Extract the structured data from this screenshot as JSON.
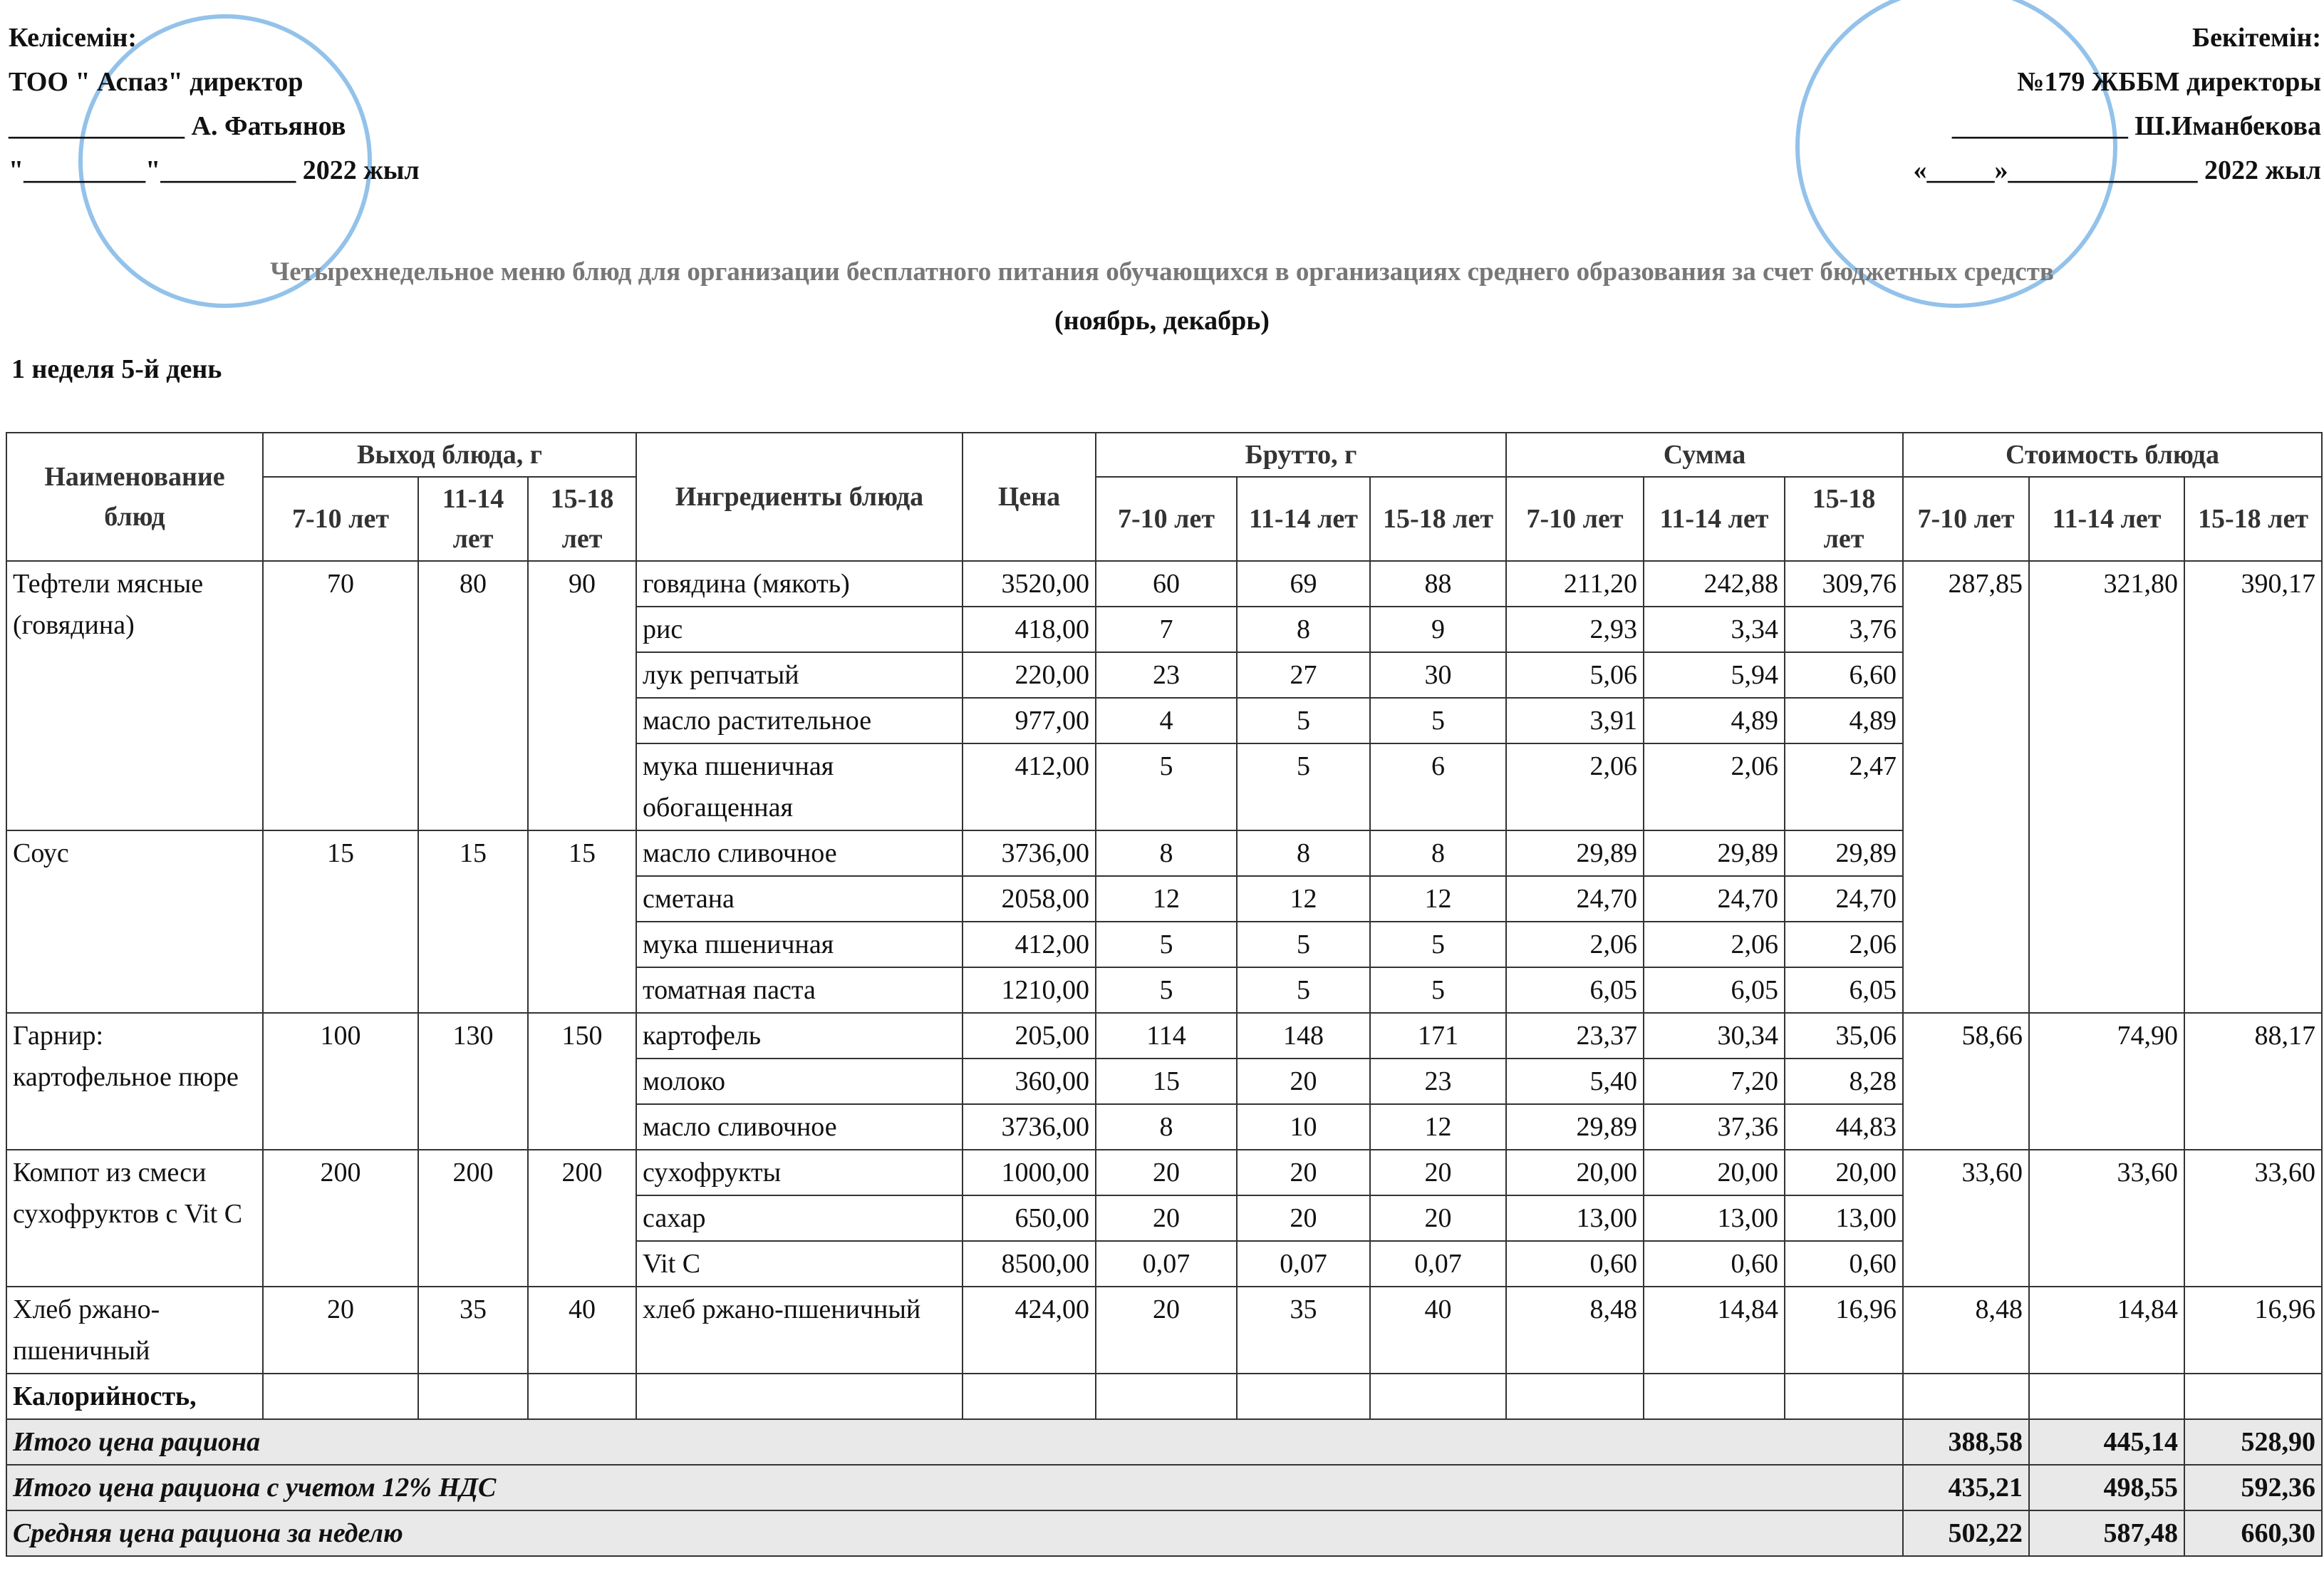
{
  "header": {
    "left": [
      "Келісемін:",
      "ТОО  \" Аспаз\" директор",
      "_____________ А. Фатьянов",
      "\"_________\"__________ 2022 жыл"
    ],
    "right": [
      "Бекітемін:",
      "№179 ЖББМ директоры",
      "_____________ Ш.Иманбекова",
      "«_____»______________ 2022 жыл"
    ],
    "title": "Четырехнедельное меню блюд для организации бесплатного питания обучающихся в организациях среднего образования за счет бюджетных средств",
    "subtitle": "(ноябрь, декабрь)",
    "day": "1 неделя 5-й день"
  },
  "table": {
    "headers": {
      "name": "Наименование блюд",
      "output": "Выход блюда, г",
      "ingredients": "Ингредиенты блюда",
      "price": "Цена",
      "brutto": "Брутто, г",
      "sum": "Сумма",
      "cost": "Стоимость блюда",
      "ages": [
        "7-10 лет",
        "11-14 лет",
        "15-18 лет"
      ]
    },
    "dishes": [
      {
        "name": "Тефтели мясные (говядина)",
        "output": [
          "70",
          "80",
          "90"
        ],
        "cost": [
          "287,85",
          "321,80",
          "390,17"
        ],
        "ingredients": [
          {
            "name": "говядина (мякоть)",
            "price": "3520,00",
            "brutto": [
              "60",
              "69",
              "88"
            ],
            "sum": [
              "211,20",
              "242,88",
              "309,76"
            ]
          },
          {
            "name": "рис",
            "price": "418,00",
            "brutto": [
              "7",
              "8",
              "9"
            ],
            "sum": [
              "2,93",
              "3,34",
              "3,76"
            ]
          },
          {
            "name": "лук репчатый",
            "price": "220,00",
            "brutto": [
              "23",
              "27",
              "30"
            ],
            "sum": [
              "5,06",
              "5,94",
              "6,60"
            ]
          },
          {
            "name": "масло растительное",
            "price": "977,00",
            "brutto": [
              "4",
              "5",
              "5"
            ],
            "sum": [
              "3,91",
              "4,89",
              "4,89"
            ]
          },
          {
            "name": "мука пшеничная обогащенная",
            "price": "412,00",
            "brutto": [
              "5",
              "5",
              "6"
            ],
            "sum": [
              "2,06",
              "2,06",
              "2,47"
            ]
          }
        ]
      },
      {
        "name": "Соус",
        "output": [
          "15",
          "15",
          "15"
        ],
        "ingredients": [
          {
            "name": "масло сливочное",
            "price": "3736,00",
            "brutto": [
              "8",
              "8",
              "8"
            ],
            "sum": [
              "29,89",
              "29,89",
              "29,89"
            ]
          },
          {
            "name": "сметана",
            "price": "2058,00",
            "brutto": [
              "12",
              "12",
              "12"
            ],
            "sum": [
              "24,70",
              "24,70",
              "24,70"
            ]
          },
          {
            "name": "мука пшеничная",
            "price": "412,00",
            "brutto": [
              "5",
              "5",
              "5"
            ],
            "sum": [
              "2,06",
              "2,06",
              "2,06"
            ]
          },
          {
            "name": "томатная паста",
            "price": "1210,00",
            "brutto": [
              "5",
              "5",
              "5"
            ],
            "sum": [
              "6,05",
              "6,05",
              "6,05"
            ]
          }
        ]
      },
      {
        "name": "Гарнир: картофельное пюре",
        "output": [
          "100",
          "130",
          "150"
        ],
        "cost": [
          "58,66",
          "74,90",
          "88,17"
        ],
        "ingredients": [
          {
            "name": "картофель",
            "price": "205,00",
            "brutto": [
              "114",
              "148",
              "171"
            ],
            "sum": [
              "23,37",
              "30,34",
              "35,06"
            ]
          },
          {
            "name": "молоко",
            "price": "360,00",
            "brutto": [
              "15",
              "20",
              "23"
            ],
            "sum": [
              "5,40",
              "7,20",
              "8,28"
            ]
          },
          {
            "name": "масло сливочное",
            "price": "3736,00",
            "brutto": [
              "8",
              "10",
              "12"
            ],
            "sum": [
              "29,89",
              "37,36",
              "44,83"
            ]
          }
        ]
      },
      {
        "name": "Компот из смеси сухофруктов с Vit C",
        "output": [
          "200",
          "200",
          "200"
        ],
        "cost": [
          "33,60",
          "33,60",
          "33,60"
        ],
        "ingredients": [
          {
            "name": "сухофрукты",
            "price": "1000,00",
            "brutto": [
              "20",
              "20",
              "20"
            ],
            "sum": [
              "20,00",
              "20,00",
              "20,00"
            ]
          },
          {
            "name": "сахар",
            "price": "650,00",
            "brutto": [
              "20",
              "20",
              "20"
            ],
            "sum": [
              "13,00",
              "13,00",
              "13,00"
            ]
          },
          {
            "name": "Vit C",
            "price": "8500,00",
            "brutto": [
              "0,07",
              "0,07",
              "0,07"
            ],
            "sum": [
              "0,60",
              "0,60",
              "0,60"
            ]
          }
        ]
      },
      {
        "name": "Хлеб ржано-пшеничный",
        "output": [
          "20",
          "35",
          "40"
        ],
        "cost": [
          "8,48",
          "14,84",
          "16,96"
        ],
        "ingredients": [
          {
            "name": "хлеб ржано-пшеничный",
            "price": "424,00",
            "brutto": [
              "20",
              "35",
              "40"
            ],
            "sum": [
              "8,48",
              "14,84",
              "16,96"
            ]
          }
        ]
      }
    ],
    "calorie_label": "Калорийность,",
    "totals": [
      {
        "label": "Итого цена рациона",
        "values": [
          "388,58",
          "445,14",
          "528,90"
        ]
      },
      {
        "label": "Итого цена рациона с учетом 12% НДС",
        "values": [
          "435,21",
          "498,55",
          "592,36"
        ]
      },
      {
        "label": "Средняя цена рациона за неделю",
        "values": [
          "502,22",
          "587,48",
          "660,30"
        ]
      }
    ]
  }
}
